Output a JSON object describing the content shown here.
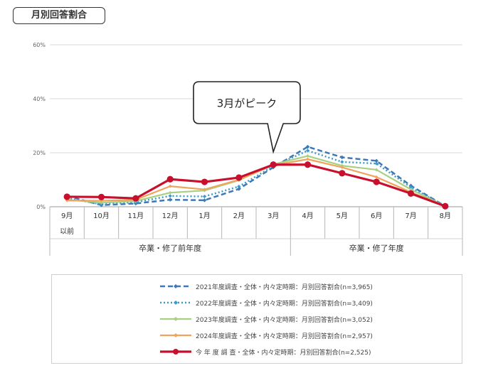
{
  "header": {
    "title": "月別回答割合"
  },
  "chart_data": {
    "type": "line",
    "ylim": [
      0,
      60
    ],
    "yticks": [
      "0%",
      "20%",
      "40%",
      "60%"
    ],
    "categories": [
      "9月",
      "10月",
      "11月",
      "12月",
      "1月",
      "2月",
      "3月",
      "4月",
      "5月",
      "6月",
      "7月",
      "8月"
    ],
    "category_sublabel": {
      "index": 0,
      "text": "以前"
    },
    "groups": [
      {
        "label": "卒業・修了前年度",
        "start": 0,
        "end": 6
      },
      {
        "label": "卒業・修了年度",
        "start": 7,
        "end": 11
      }
    ],
    "callout": {
      "text": "3月がピーク",
      "target_index": 6
    },
    "series": [
      {
        "name": "2021年度調査・全体・内々定時期：月別回答割合(n=3,965)",
        "color": "#3f78b6",
        "style": "dashed",
        "values": [
          4.0,
          0.6,
          1.2,
          2.6,
          2.4,
          6.6,
          14.6,
          22.2,
          18.3,
          17.0,
          7.8,
          0.2
        ]
      },
      {
        "name": "2022年度調査・全体・内々定時期：月別回答割合(n=3,409)",
        "color": "#3a9bc9",
        "style": "dotted",
        "values": [
          3.2,
          0.9,
          1.7,
          4.0,
          3.8,
          7.5,
          15.0,
          20.8,
          16.6,
          16.0,
          7.2,
          0.2
        ]
      },
      {
        "name": "2023年度調査・全体・内々定時期：月別回答割合(n=3,052)",
        "color": "#a9cf82",
        "style": "solid",
        "values": [
          2.6,
          1.5,
          2.1,
          5.2,
          6.0,
          9.8,
          15.7,
          18.8,
          15.2,
          13.7,
          6.4,
          0.2
        ]
      },
      {
        "name": "2024年度調査・全体・内々定時期：月別回答割合(n=2,957)",
        "color": "#f0a35a",
        "style": "solid",
        "values": [
          2.3,
          2.2,
          2.6,
          7.6,
          6.4,
          10.0,
          15.4,
          17.6,
          14.6,
          11.0,
          5.4,
          0.2
        ]
      },
      {
        "name": "今 年 度 調 査・全体・内々定時期：月別回答割合(n=2,525)",
        "color": "#c8102e",
        "style": "bold",
        "values": [
          3.7,
          3.6,
          3.1,
          10.2,
          9.2,
          10.8,
          15.6,
          15.6,
          12.4,
          9.2,
          4.9,
          0.2
        ]
      }
    ]
  }
}
